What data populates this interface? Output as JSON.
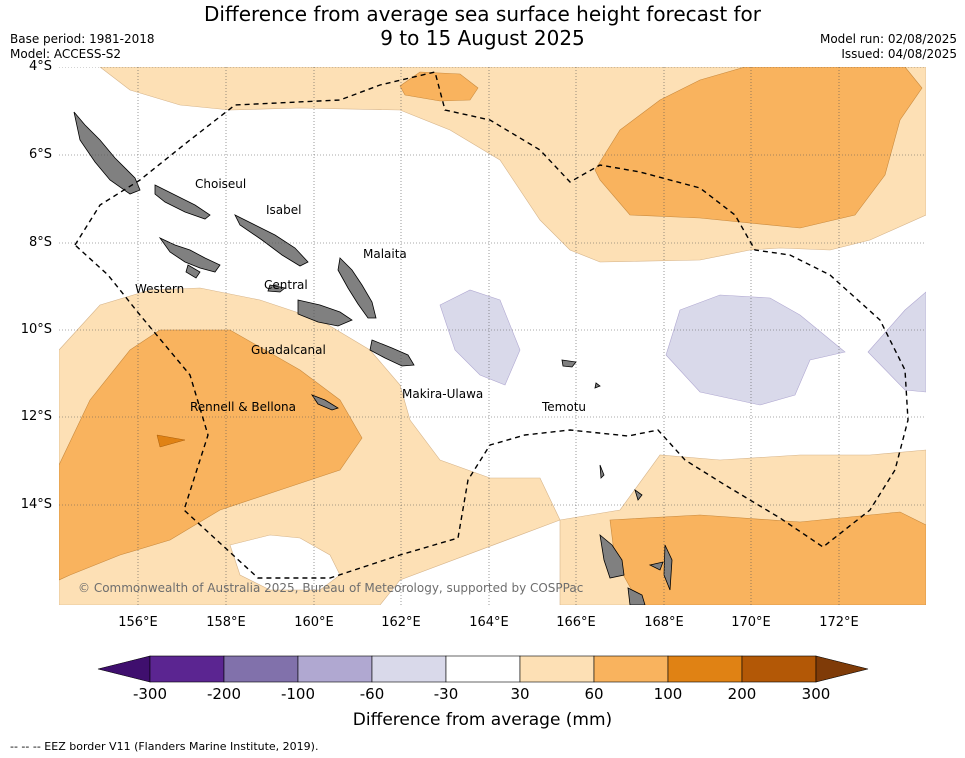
{
  "title": {
    "line1": "Difference from average sea surface height forecast for",
    "line2": "9 to 15 August 2025"
  },
  "meta": {
    "base_period": "Base period: 1981-2018",
    "model": "Model: ACCESS-S2",
    "model_run": "Model run: 02/08/2025",
    "issued": "Issued: 04/08/2025"
  },
  "axes": {
    "y_ticks": [
      "4°S",
      "6°S",
      "8°S",
      "10°S",
      "12°S",
      "14°S"
    ],
    "x_ticks": [
      "156°E",
      "158°E",
      "160°E",
      "162°E",
      "164°E",
      "166°E",
      "168°E",
      "170°E",
      "172°E"
    ]
  },
  "places": {
    "choiseul": "Choiseul",
    "isabel": "Isabel",
    "malaita": "Malaita",
    "western": "Western",
    "central": "Central",
    "guadalcanal": "Guadalcanal",
    "makira": "Makira-Ulawa",
    "temotu": "Temotu",
    "rennell": "Rennell & Bellona"
  },
  "colorbar": {
    "labels": [
      "-300",
      "-200",
      "-100",
      "-60",
      "-30",
      "30",
      "60",
      "100",
      "200",
      "300"
    ],
    "colors": [
      "#3f0f6e",
      "#5b2591",
      "#8171ab",
      "#b0a8d1",
      "#d9d9ea",
      "#ffffff",
      "#fde0b5",
      "#f9b35e",
      "#e08214",
      "#b35806",
      "#7f3b08"
    ],
    "title": "Difference from average (mm)"
  },
  "colors": {
    "land": "#808080",
    "band_30_60": "#fde0b5",
    "band_60_100": "#f9b35e",
    "band_100_200": "#e08214",
    "band_neg_30_60": "#d9d9ea"
  },
  "copyright": "© Commonwealth of Australia 2025, Bureau of Meteorology, supported by COSPPac",
  "footer": "--  --  -- EEZ border V11 (Flanders Marine Institute, 2019)."
}
